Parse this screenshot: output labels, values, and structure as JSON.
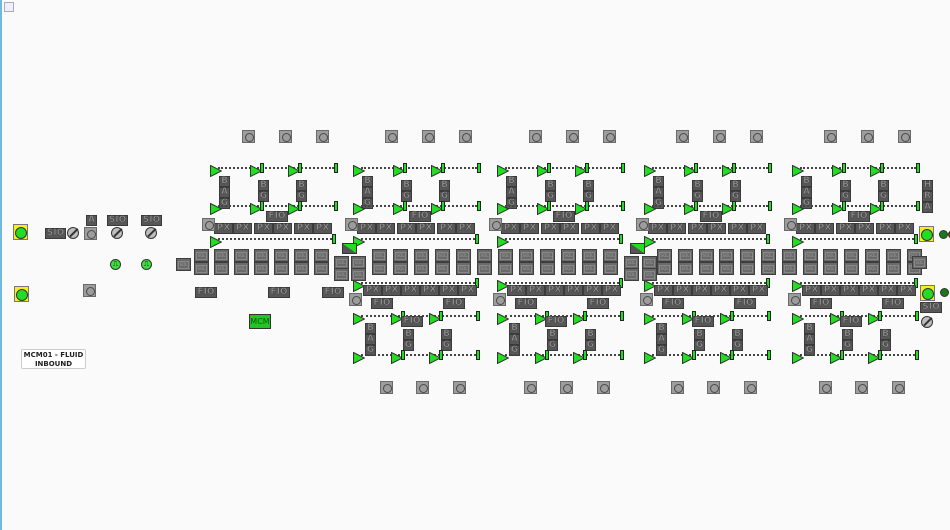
{
  "panel_title": "MCM01 - FLUID INBOUND",
  "labels": {
    "sol": "SOL",
    "px": "PX",
    "fio": "FIO",
    "sio": "SIO",
    "mcm": "MCM",
    "b": "B",
    "a": "A",
    "g": "G",
    "h": "H",
    "r": "R",
    "pulse": "⎍"
  },
  "colors": {
    "running_green": "#22dd22",
    "alarm_yellow": "#f5ef1c",
    "device_gray": "#9d9d9d",
    "label_dark": "#575757",
    "status_dark_green": "#1a7a1a",
    "status_red": "#b01a1a"
  },
  "icons": {
    "broken_image": "broken-image-icon",
    "motor": "motor-button-icon",
    "conveyor_start": "triangle-play-icon",
    "disabled": "disabled-slash-icon",
    "pulse": "pulse-icon",
    "junction": "diverter-junction-icon"
  }
}
